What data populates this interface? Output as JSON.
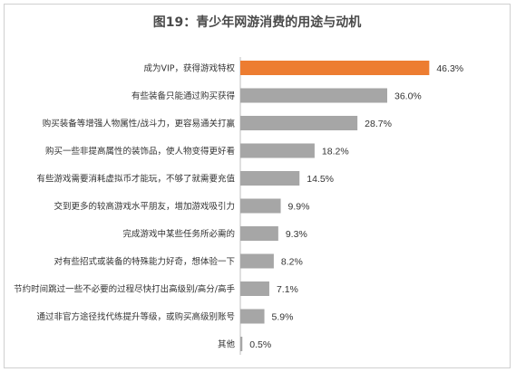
{
  "chart_data": {
    "type": "bar",
    "orientation": "horizontal",
    "title": "图19：青少年网游消费的用途与动机",
    "categories": [
      "成为VIP，获得游戏特权",
      "有些装备只能通过购买获得",
      "购买装备等增强人物属性/战斗力，更容易通关打赢",
      "购买一些非提高属性的装饰品，使人物变得更好看",
      "有些游戏需要消耗虚拟币才能玩，不够了就需要充值",
      "交到更多的较高游戏水平朋友，增加游戏吸引力",
      "完成游戏中某些任务所必需的",
      "对有些招式或装备的特殊能力好奇，想体验一下",
      "节约时间跳过一些不必要的过程尽快打出高级别/高分/高手",
      "通过非官方途径找代练提升等级，或购买高级别账号",
      "其他"
    ],
    "values": [
      46.3,
      36.0,
      28.7,
      18.2,
      14.5,
      9.9,
      9.3,
      8.2,
      7.1,
      5.9,
      0.5
    ],
    "value_labels": [
      "46.3%",
      "36.0%",
      "28.7%",
      "18.2%",
      "14.5%",
      "9.9%",
      "9.3%",
      "8.2%",
      "7.1%",
      "5.9%",
      "0.5%"
    ],
    "highlight_color": "#ed7d31",
    "bar_color": "#a6a6a6",
    "xlim": [
      0,
      50
    ],
    "grid": false,
    "legend": "none"
  }
}
